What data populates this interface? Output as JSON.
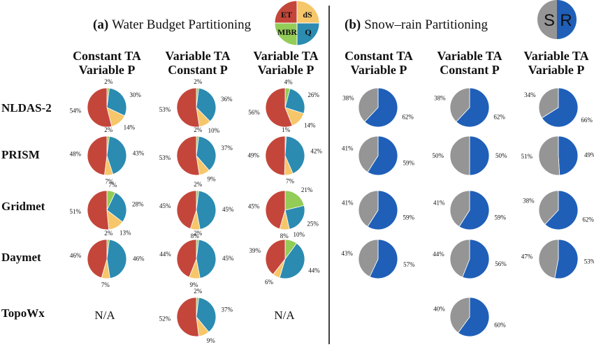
{
  "colors": {
    "ET": "#c4463a",
    "dS": "#f6c66a",
    "Q": "#2b8bb1",
    "MBR": "#93cc57",
    "S": "#959595",
    "R": "#1f5fb8",
    "slice_border": "#ffffff"
  },
  "panel_a": {
    "letter": "(a)",
    "title": "Water Budget Partitioning",
    "legend": {
      "ET": "ET",
      "dS": "dS",
      "MBR": "MBR",
      "Q": "Q"
    },
    "columns": [
      [
        "Constant TA",
        "Variable P"
      ],
      [
        "Variable TA",
        "Constant P"
      ],
      [
        "Variable TA",
        "Variable P"
      ]
    ]
  },
  "panel_b": {
    "letter": "(b)",
    "title": "Snow–rain Partitioning",
    "legend": {
      "S": "S",
      "R": "R"
    },
    "columns": [
      [
        "Constant TA",
        "Variable P"
      ],
      [
        "Variable TA",
        "Constant P"
      ],
      [
        "Variable TA",
        "Variable P"
      ]
    ]
  },
  "rows": [
    "NLDAS-2",
    "PRISM",
    "Gridmet",
    "Daymet",
    "TopoWx"
  ],
  "na_label": "N/A",
  "chart_data": [
    {
      "type": "pie",
      "title": "(a) Water Budget Partitioning",
      "components": [
        "ET",
        "dS",
        "MBR",
        "Q"
      ],
      "columns": [
        "Constant TA Variable P",
        "Variable TA Constant P",
        "Variable TA Variable P"
      ],
      "rows": [
        "NLDAS-2",
        "PRISM",
        "Gridmet",
        "Daymet",
        "TopoWx"
      ],
      "pies": [
        [
          {
            "ET": 54,
            "dS": 14,
            "MBR": 2,
            "Q": 30,
            "labels": {
              "ET": "54%",
              "dS": "14%",
              "MBR": "2%",
              "Q": "30%"
            }
          },
          {
            "ET": 53,
            "dS": 10,
            "MBR": 2,
            "Q": 36,
            "labels": {
              "ET": "53%",
              "dS": "10%",
              "MBR": "2%",
              "Q": "36%"
            }
          },
          {
            "ET": 56,
            "dS": 14,
            "MBR": 4,
            "Q": 26,
            "labels": {
              "ET": "56%",
              "dS": "14%",
              "MBR": "4%",
              "Q": "26%"
            }
          }
        ],
        [
          {
            "ET": 48,
            "dS": 7,
            "MBR": 2,
            "Q": 43,
            "labels": {
              "ET": "48%",
              "dS": "7%",
              "MBR": "2%",
              "Q": "43%"
            }
          },
          {
            "ET": 53,
            "dS": 9,
            "MBR": 2,
            "Q": 37,
            "labels": {
              "ET": "53%",
              "dS": "9%",
              "MBR": "2%",
              "Q": "37%"
            }
          },
          {
            "ET": 49,
            "dS": 7,
            "MBR": 1,
            "Q": 42,
            "labels": {
              "ET": "49%",
              "dS": "7%",
              "MBR": "1%",
              "Q": "42%"
            }
          }
        ],
        [
          {
            "ET": 51,
            "dS": 13,
            "MBR": 7,
            "Q": 28,
            "labels": {
              "ET": "51%",
              "dS": "13%",
              "MBR": "7%",
              "Q": "28%"
            }
          },
          {
            "ET": 45,
            "dS": 8,
            "MBR": 2,
            "Q": 45,
            "labels": {
              "ET": "45%",
              "dS": "8%",
              "MBR": "2%",
              "Q": "45%"
            }
          },
          {
            "ET": 45,
            "dS": 8,
            "MBR": 21,
            "Q": 25,
            "labels": {
              "ET": "45%",
              "dS": "8%",
              "MBR": "21%",
              "Q": "25%"
            }
          }
        ],
        [
          {
            "ET": 46,
            "dS": 7,
            "MBR": 2,
            "Q": 46,
            "labels": {
              "ET": "46%",
              "dS": "7%",
              "MBR": "2%",
              "Q": "46%"
            }
          },
          {
            "ET": 44,
            "dS": 9,
            "MBR": 2,
            "Q": 45,
            "labels": {
              "ET": "44%",
              "dS": "9%",
              "MBR": "2%",
              "Q": "45%"
            }
          },
          {
            "ET": 39,
            "dS": 6,
            "MBR": 10,
            "Q": 44,
            "labels": {
              "ET": "39%",
              "dS": "6%",
              "MBR": "10%",
              "Q": "44%"
            }
          }
        ],
        [
          null,
          {
            "ET": 52,
            "dS": 9,
            "MBR": 2,
            "Q": 37,
            "labels": {
              "ET": "52%",
              "dS": "9%",
              "MBR": "2%",
              "Q": "37%"
            }
          },
          null
        ]
      ]
    },
    {
      "type": "pie",
      "title": "(b) Snow–rain Partitioning",
      "components": [
        "S",
        "R"
      ],
      "columns": [
        "Constant TA Variable P",
        "Variable TA Constant P",
        "Variable TA Variable P"
      ],
      "rows": [
        "NLDAS-2",
        "PRISM",
        "Gridmet",
        "Daymet",
        "TopoWx"
      ],
      "pies": [
        [
          {
            "S": 38,
            "R": 62,
            "labels": {
              "S": "38%",
              "R": "62%"
            }
          },
          {
            "S": 38,
            "R": 62,
            "labels": {
              "S": "38%",
              "R": "62%"
            }
          },
          {
            "S": 34,
            "R": 66,
            "labels": {
              "S": "34%",
              "R": "66%"
            }
          }
        ],
        [
          {
            "S": 41,
            "R": 59,
            "labels": {
              "S": "41%",
              "R": "59%"
            }
          },
          {
            "S": 50,
            "R": 50,
            "labels": {
              "S": "50%",
              "R": "50%"
            }
          },
          {
            "S": 51,
            "R": 49,
            "labels": {
              "S": "51%",
              "R": "49%"
            }
          }
        ],
        [
          {
            "S": 41,
            "R": 59,
            "labels": {
              "S": "41%",
              "R": "59%"
            }
          },
          {
            "S": 41,
            "R": 59,
            "labels": {
              "S": "41%",
              "R": "59%"
            }
          },
          {
            "S": 38,
            "R": 62,
            "labels": {
              "S": "38%",
              "R": "62%"
            }
          }
        ],
        [
          {
            "S": 43,
            "R": 57,
            "labels": {
              "S": "43%",
              "R": "57%"
            }
          },
          {
            "S": 44,
            "R": 56,
            "labels": {
              "S": "44%",
              "R": "56%"
            }
          },
          {
            "S": 47,
            "R": 53,
            "labels": {
              "S": "47%",
              "R": "53%"
            }
          }
        ],
        [
          null,
          {
            "S": 40,
            "R": 60,
            "labels": {
              "S": "40%",
              "R": "60%"
            }
          },
          null
        ]
      ]
    }
  ]
}
